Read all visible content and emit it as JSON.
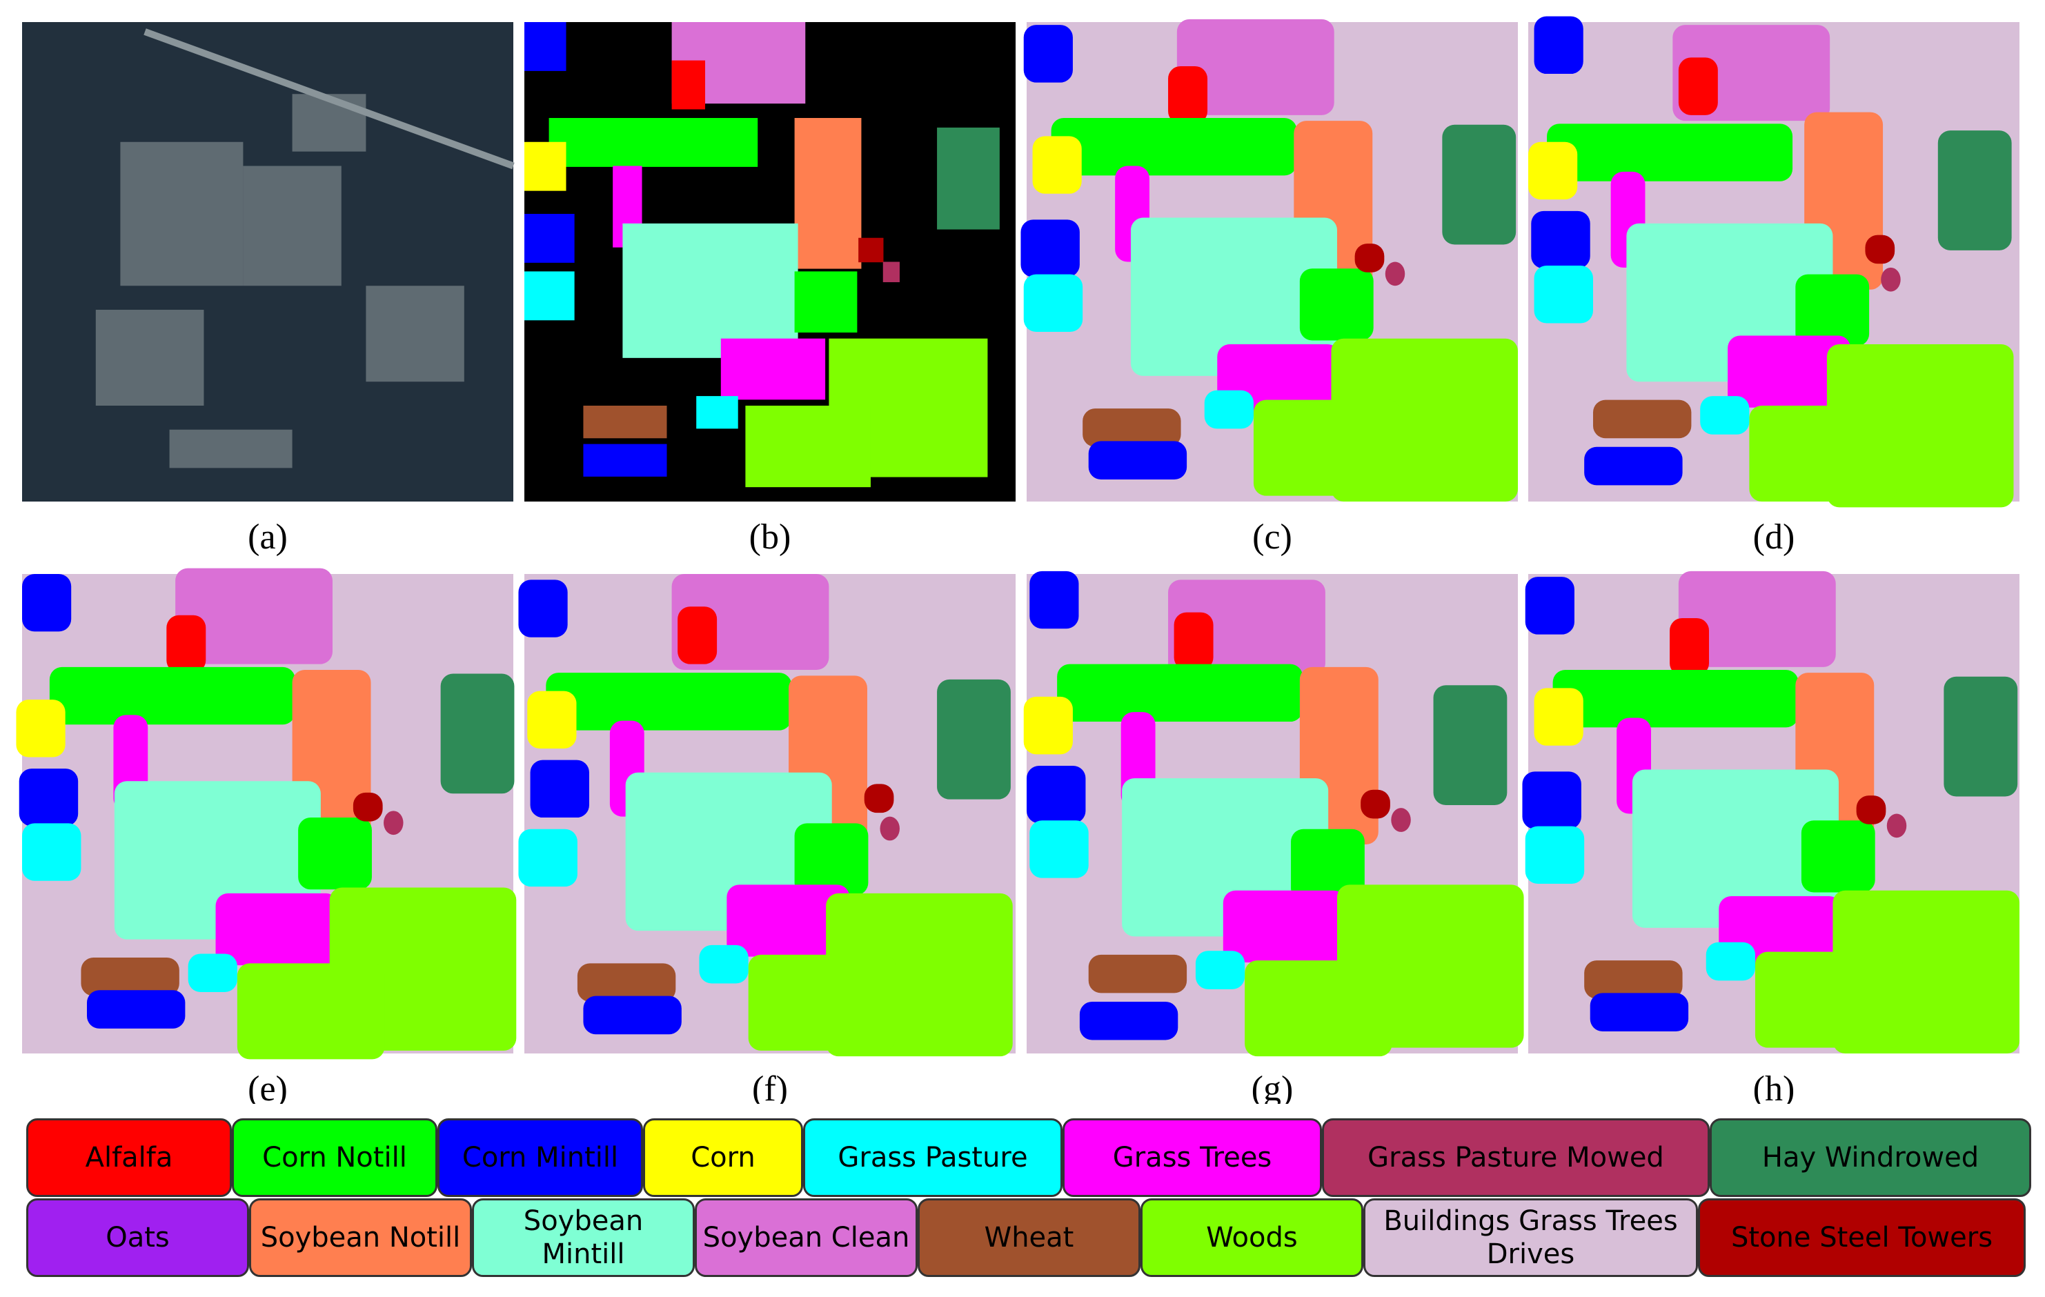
{
  "panels": [
    {
      "caption": "(a)"
    },
    {
      "caption": "(b)"
    },
    {
      "caption": "(c)"
    },
    {
      "caption": "(d)"
    },
    {
      "caption": "(e)"
    },
    {
      "caption": "(f)"
    },
    {
      "caption": "(g)"
    },
    {
      "caption": "(h)"
    }
  ],
  "legend": {
    "items": [
      {
        "label": "Alfalfa",
        "color": "#ff0000"
      },
      {
        "label": "Corn Notill",
        "color": "#00ff00"
      },
      {
        "label": "Corn Mintill",
        "color": "#0000ff"
      },
      {
        "label": "Corn",
        "color": "#ffff00"
      },
      {
        "label": "Grass Pasture",
        "color": "#00ffff"
      },
      {
        "label": "Grass Trees",
        "color": "#ff00ff"
      },
      {
        "label": "Grass Pasture Mowed",
        "color": "#b03060"
      },
      {
        "label": "Hay Windrowed",
        "color": "#2e8b57"
      },
      {
        "label": "Oats",
        "color": "#a020f0"
      },
      {
        "label": "Soybean Notill",
        "color": "#ff7f50"
      },
      {
        "label": "Soybean Mintill",
        "color": "#7fffd4"
      },
      {
        "label": "Soybean Clean",
        "color": "#da70d6"
      },
      {
        "label": "Wheat",
        "color": "#a0522d"
      },
      {
        "label": "Woods",
        "color": "#7fff00"
      },
      {
        "label": "Buildings Grass Trees Drives",
        "color": "#d8bfd8"
      },
      {
        "label": "Stone Steel Towers",
        "color": "#b00000"
      }
    ]
  }
}
